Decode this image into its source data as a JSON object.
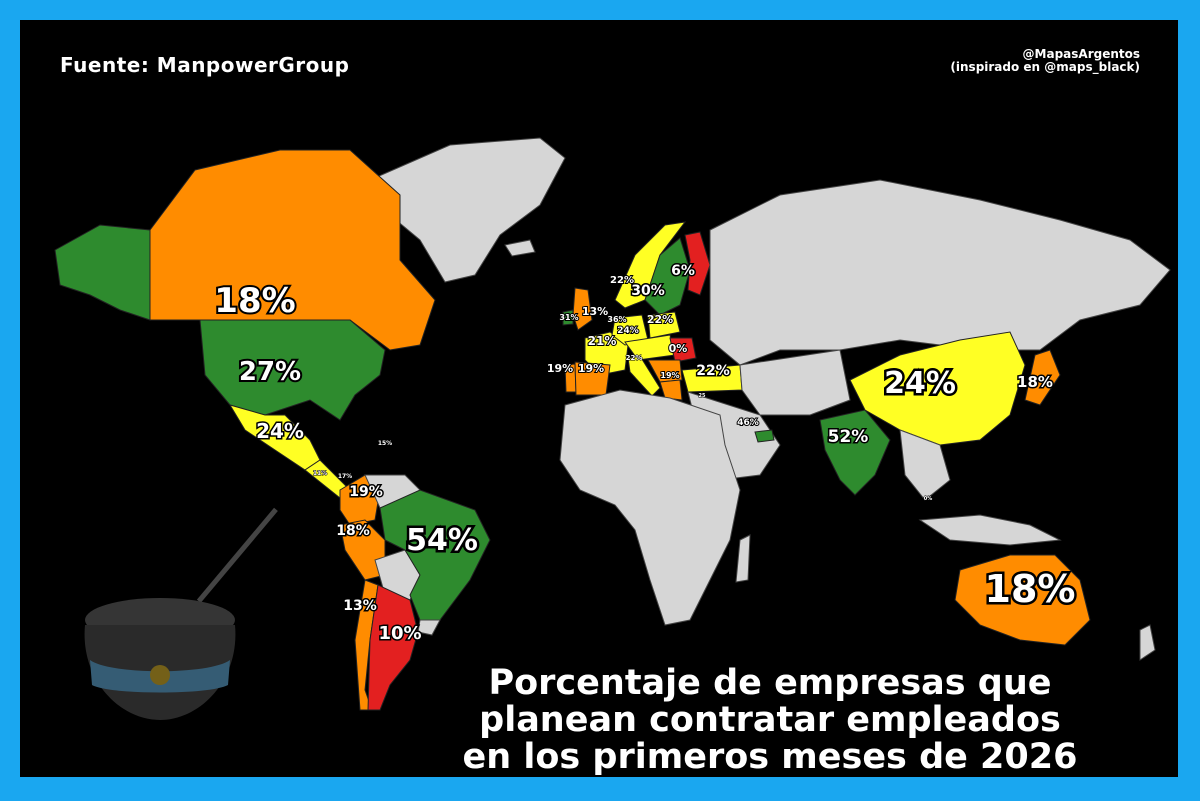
{
  "header": {
    "source": "Fuente: ManpowerGroup",
    "credit_line1": "@MapasArgentos",
    "credit_line2": "(inspirado en @maps_black)"
  },
  "legend_colors": {
    "green": "#2e8b2e",
    "yellow": "#ffff24",
    "orange": "#ff8c00",
    "red": "#e32020",
    "no_data": "#d6d6d6",
    "ocean": "#000000",
    "frame": "#1aa7f0"
  },
  "title": {
    "line1": "Porcentaje de empresas que",
    "line2": "planean contratar empleados",
    "line3": "en los primeros meses de 2026"
  },
  "labels": {
    "canada": "18%",
    "usa": "27%",
    "mexico": "24%",
    "colombia": "19%",
    "peru": "18%",
    "brazil": "54%",
    "chile": "13%",
    "argentina": "10%",
    "china": "24%",
    "japan": "18%",
    "india": "52%",
    "australia": "18%",
    "finland": "6%",
    "sweden": "30%",
    "norway": "22%",
    "uk": "13%",
    "ireland": "31%",
    "poland": "22%",
    "switzerland": "21%",
    "romania": "0%",
    "spain": "19%",
    "portugal": "19%",
    "turkey": "22%",
    "greece": "19%",
    "uae": "46%",
    "netherlands": "36%",
    "germany": "24%",
    "italy": "22%",
    "israel": "25",
    "guatemala": "15%",
    "panama": "11%",
    "costa_rica": "17%",
    "singapore": "0%"
  }
}
